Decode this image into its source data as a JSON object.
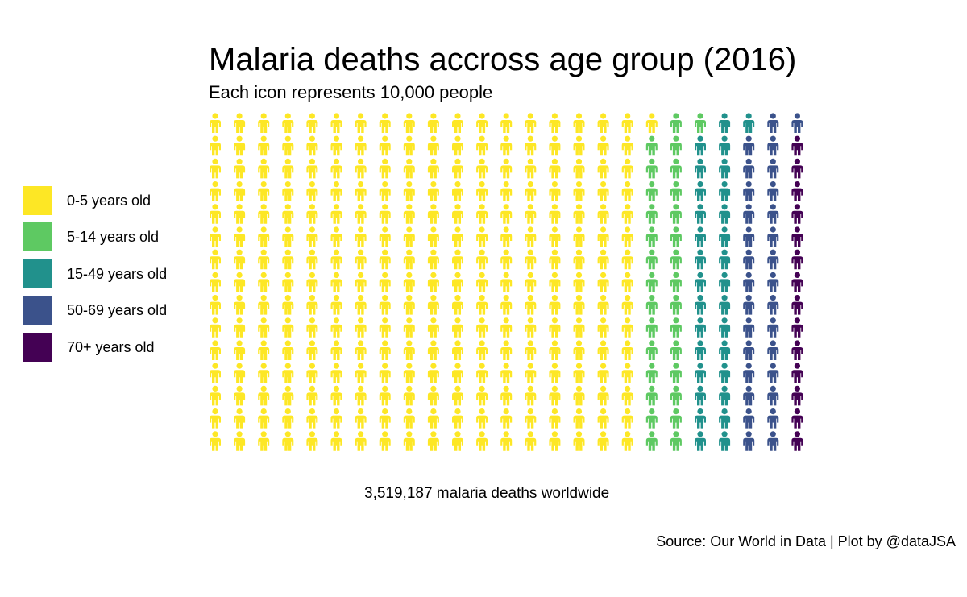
{
  "chart_data": {
    "type": "waffle",
    "title": "Malaria deaths accross age group (2016)",
    "subtitle": "Each icon represents 10,000 people",
    "icon_unit": 10000,
    "icon": "person-icon",
    "rows": 15,
    "fill_order": "column-major, top to bottom, bottom-aligned last column",
    "categories": [
      "0-5 years old",
      "5-14 years old",
      "15-49 years old",
      "50-69 years old",
      "70+ years old"
    ],
    "colors": [
      "#FDE725",
      "#5EC962",
      "#21918C",
      "#3B528B",
      "#440154"
    ],
    "values": [
      271,
      30,
      30,
      30,
      14
    ],
    "legend_position": "left",
    "caption": "3,519,187 malaria deaths worldwide",
    "source": "Source: Our World in Data | Plot by @dataJSA"
  }
}
